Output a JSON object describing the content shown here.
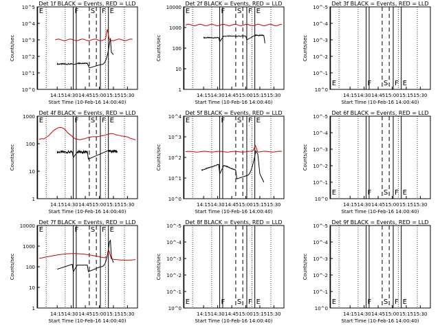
{
  "x_ticks": [
    "14:15",
    "14:30",
    "14:45",
    "15:00",
    "15:15",
    "15:30"
  ],
  "xlabel": "Start Time (10-Feb-16 14:00:40)",
  "ylabel": "Counts/sec",
  "flag_labels": [
    "E",
    "F",
    "S",
    "F",
    "E"
  ],
  "colors": {
    "events": "#000000",
    "lld": "#cc0000"
  },
  "chart_data": [
    {
      "type": "line",
      "title": "Det 1f BLACK = Events, RED = LLD",
      "ytick_labels": [
        "10^0",
        "10^1",
        "10^2",
        "10^3",
        "10^4",
        "10^5"
      ],
      "log_range": [
        0,
        5
      ],
      "series": [
        {
          "name": "BLACK = Events",
          "role": "events",
          "shape": "det1"
        },
        {
          "name": "RED = LLD",
          "role": "lld",
          "shape": "det1"
        }
      ]
    },
    {
      "type": "line",
      "title": "Det 2f BLACK = Events, RED = LLD",
      "ytick_labels": [
        "1",
        "10",
        "100",
        "1000",
        "10000"
      ],
      "log_range": [
        0,
        4
      ],
      "series": [
        {
          "name": "BLACK = Events",
          "role": "events",
          "shape": "det2"
        },
        {
          "name": "RED = LLD",
          "role": "lld",
          "shape": "det2"
        }
      ]
    },
    {
      "type": "line",
      "title": "Det 3f BLACK = Events, RED = LLD",
      "ytick_labels": [
        "10^0",
        "10^-1",
        "10^-2",
        "10^-3",
        "10^-4",
        "10^-5"
      ],
      "log_range": [
        0,
        5
      ],
      "series": []
    },
    {
      "type": "line",
      "title": "Det 4f BLACK = Events, RED = LLD",
      "ytick_labels": [
        "1",
        "10",
        "100",
        "1000"
      ],
      "log_range": [
        0,
        3
      ],
      "series": [
        {
          "name": "BLACK = Events",
          "role": "events",
          "shape": "det4"
        },
        {
          "name": "RED = LLD",
          "role": "lld",
          "shape": "det4"
        }
      ]
    },
    {
      "type": "line",
      "title": "Det 5f BLACK = Events, RED = LLD",
      "ytick_labels": [
        "10^0",
        "10^1",
        "10^2",
        "10^3",
        "10^4"
      ],
      "log_range": [
        0,
        4
      ],
      "series": [
        {
          "name": "BLACK = Events",
          "role": "events",
          "shape": "det5"
        },
        {
          "name": "RED = LLD",
          "role": "lld",
          "shape": "det5"
        }
      ]
    },
    {
      "type": "line",
      "title": "Det 6f BLACK = Events, RED = LLD",
      "ytick_labels": [
        "10^0",
        "10^-1",
        "10^-2",
        "10^-3",
        "10^-4",
        "10^-5"
      ],
      "log_range": [
        0,
        5
      ],
      "series": []
    },
    {
      "type": "line",
      "title": "Det 7f BLACK = Events, RED = LLD",
      "ytick_labels": [
        "1",
        "10",
        "100",
        "1000",
        "10000"
      ],
      "log_range": [
        0,
        4
      ],
      "series": [
        {
          "name": "BLACK = Events",
          "role": "events",
          "shape": "det7"
        },
        {
          "name": "RED = LLD",
          "role": "lld",
          "shape": "det7"
        }
      ]
    },
    {
      "type": "line",
      "title": "Det 8f BLACK = Events, RED = LLD",
      "ytick_labels": [
        "10^0",
        "10^-1",
        "10^-2",
        "10^-3",
        "10^-4",
        "10^-5"
      ],
      "log_range": [
        0,
        5
      ],
      "series": []
    },
    {
      "type": "line",
      "title": "Det 9f BLACK = Events, RED = LLD",
      "ytick_labels": [
        "10^0",
        "10^-1",
        "10^-2",
        "10^-3",
        "10^-4",
        "10^-5"
      ],
      "log_range": [
        0,
        5
      ],
      "series": []
    }
  ]
}
